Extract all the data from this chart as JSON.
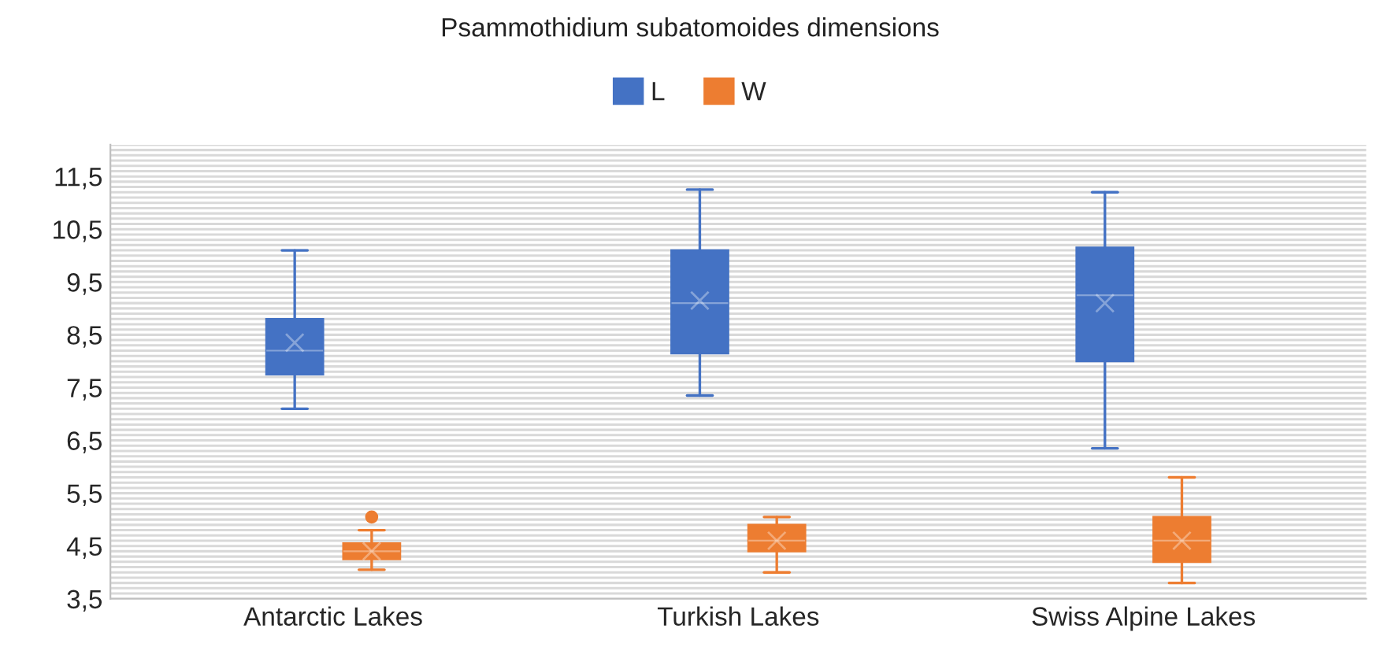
{
  "chart_data": {
    "type": "box",
    "title": "Psammothidium subatomoides dimensions",
    "categories": [
      "Antarctic Lakes",
      "Turkish Lakes",
      "Swiss Alpine Lakes"
    ],
    "series": [
      {
        "name": "L",
        "color": "#4472c4",
        "boxes": [
          {
            "low": 7.1,
            "q1": 7.75,
            "median": 8.2,
            "q3": 8.8,
            "high": 10.1,
            "mean": 8.35
          },
          {
            "low": 7.35,
            "q1": 8.15,
            "median": 9.1,
            "q3": 10.1,
            "high": 11.25,
            "mean": 9.15
          },
          {
            "low": 6.35,
            "q1": 8.0,
            "median": 9.25,
            "q3": 10.15,
            "high": 11.2,
            "mean": 9.1
          }
        ]
      },
      {
        "name": "W",
        "color": "#ed7d31",
        "boxes": [
          {
            "low": 4.05,
            "q1": 4.25,
            "median": 4.4,
            "q3": 4.55,
            "high": 4.8,
            "mean": 4.4,
            "outliers": [
              5.05
            ]
          },
          {
            "low": 4.0,
            "q1": 4.4,
            "median": 4.6,
            "q3": 4.9,
            "high": 5.05,
            "mean": 4.6
          },
          {
            "low": 3.8,
            "q1": 4.2,
            "median": 4.6,
            "q3": 5.05,
            "high": 5.8,
            "mean": 4.6
          }
        ]
      }
    ],
    "ylim": [
      3.5,
      12.1
    ],
    "yticks": [
      {
        "value": 3.5,
        "label": "3,5"
      },
      {
        "value": 3.6,
        "label": null
      },
      {
        "value": 3.7,
        "label": null
      },
      {
        "value": 3.8,
        "label": null
      },
      {
        "value": 3.9,
        "label": null
      },
      {
        "value": 4.0,
        "label": null
      },
      {
        "value": 4.1,
        "label": null
      },
      {
        "value": 4.2,
        "label": null
      },
      {
        "value": 4.3,
        "label": null
      },
      {
        "value": 4.4,
        "label": null
      },
      {
        "value": 4.5,
        "label": "4,5"
      },
      {
        "value": 4.6,
        "label": null
      },
      {
        "value": 4.7,
        "label": null
      },
      {
        "value": 4.8,
        "label": null
      },
      {
        "value": 4.9,
        "label": null
      },
      {
        "value": 5.0,
        "label": null
      },
      {
        "value": 5.1,
        "label": null
      },
      {
        "value": 5.2,
        "label": null
      },
      {
        "value": 5.3,
        "label": null
      },
      {
        "value": 5.4,
        "label": null
      },
      {
        "value": 5.5,
        "label": "5,5"
      },
      {
        "value": 5.6,
        "label": null
      },
      {
        "value": 5.7,
        "label": null
      },
      {
        "value": 5.8,
        "label": null
      },
      {
        "value": 5.9,
        "label": null
      },
      {
        "value": 6.0,
        "label": null
      },
      {
        "value": 6.1,
        "label": null
      },
      {
        "value": 6.2,
        "label": null
      },
      {
        "value": 6.3,
        "label": null
      },
      {
        "value": 6.4,
        "label": null
      },
      {
        "value": 6.5,
        "label": "6,5"
      },
      {
        "value": 6.6,
        "label": null
      },
      {
        "value": 6.7,
        "label": null
      },
      {
        "value": 6.8,
        "label": null
      },
      {
        "value": 6.9,
        "label": null
      },
      {
        "value": 7.0,
        "label": null
      },
      {
        "value": 7.1,
        "label": null
      },
      {
        "value": 7.2,
        "label": null
      },
      {
        "value": 7.3,
        "label": null
      },
      {
        "value": 7.4,
        "label": null
      },
      {
        "value": 7.5,
        "label": "7,5"
      },
      {
        "value": 7.6,
        "label": null
      },
      {
        "value": 7.7,
        "label": null
      },
      {
        "value": 7.8,
        "label": null
      },
      {
        "value": 7.9,
        "label": null
      },
      {
        "value": 8.0,
        "label": null
      },
      {
        "value": 8.1,
        "label": null
      },
      {
        "value": 8.2,
        "label": null
      },
      {
        "value": 8.3,
        "label": null
      },
      {
        "value": 8.4,
        "label": null
      },
      {
        "value": 8.5,
        "label": "8,5"
      },
      {
        "value": 8.6,
        "label": null
      },
      {
        "value": 8.7,
        "label": null
      },
      {
        "value": 8.8,
        "label": null
      },
      {
        "value": 8.9,
        "label": null
      },
      {
        "value": 9.0,
        "label": null
      },
      {
        "value": 9.1,
        "label": null
      },
      {
        "value": 9.2,
        "label": null
      },
      {
        "value": 9.3,
        "label": null
      },
      {
        "value": 9.4,
        "label": null
      },
      {
        "value": 9.5,
        "label": "9,5"
      },
      {
        "value": 9.6,
        "label": null
      },
      {
        "value": 9.7,
        "label": null
      },
      {
        "value": 9.8,
        "label": null
      },
      {
        "value": 9.9,
        "label": null
      },
      {
        "value": 10.0,
        "label": null
      },
      {
        "value": 10.1,
        "label": null
      },
      {
        "value": 10.2,
        "label": null
      },
      {
        "value": 10.3,
        "label": null
      },
      {
        "value": 10.4,
        "label": null
      },
      {
        "value": 10.5,
        "label": "10,5"
      },
      {
        "value": 10.6,
        "label": null
      },
      {
        "value": 10.7,
        "label": null
      },
      {
        "value": 10.8,
        "label": null
      },
      {
        "value": 10.9,
        "label": null
      },
      {
        "value": 11.0,
        "label": null
      },
      {
        "value": 11.1,
        "label": null
      },
      {
        "value": 11.2,
        "label": null
      },
      {
        "value": 11.3,
        "label": null
      },
      {
        "value": 11.4,
        "label": null
      },
      {
        "value": 11.5,
        "label": "11,5"
      },
      {
        "value": 11.6,
        "label": null
      },
      {
        "value": 11.7,
        "label": null
      },
      {
        "value": 11.8,
        "label": null
      },
      {
        "value": 11.9,
        "label": null
      },
      {
        "value": 12.0,
        "label": null
      },
      {
        "value": 12.1,
        "label": null
      }
    ],
    "grid": "y",
    "legend": "top"
  }
}
